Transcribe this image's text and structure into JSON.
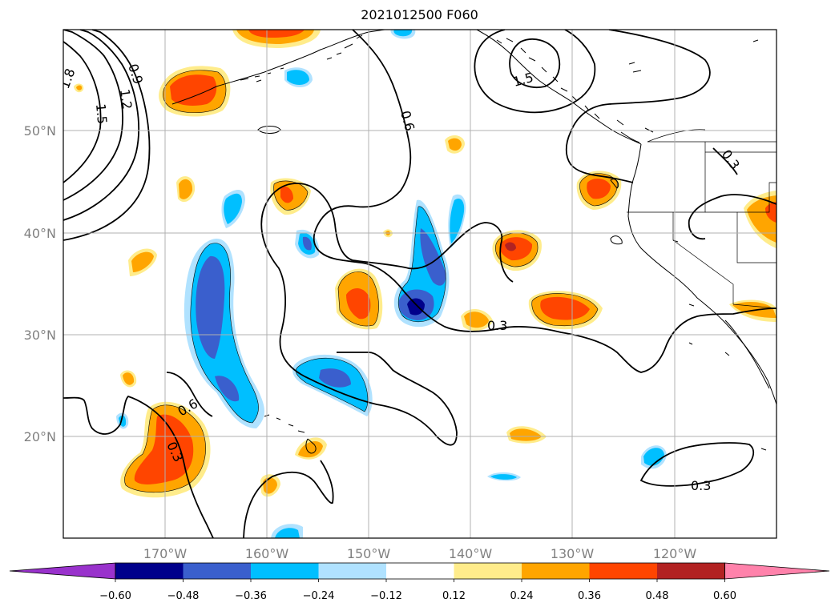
{
  "title": "2021012500 F060",
  "longitude_labels": [
    "170°W",
    "160°W",
    "150°W",
    "140°W",
    "130°W",
    "120°W"
  ],
  "latitude_labels": [
    "50°N",
    "40°N",
    "30°N",
    "20°N"
  ],
  "colorbar": {
    "ticks": [
      "−0.60",
      "−0.48",
      "−0.36",
      "−0.24",
      "−0.12",
      "0.12",
      "0.24",
      "0.36",
      "0.48",
      "0.60"
    ],
    "colors": [
      "#9932cc",
      "#00008b",
      "#3a5fcd",
      "#00bfff",
      "#b0e2ff",
      "#ffffff",
      "#ffec8b",
      "#ffa500",
      "#ff4500",
      "#b22222",
      "#ff82ab"
    ]
  },
  "contour_labels": [
    "0.9",
    "1.2",
    "1.5",
    "1.8",
    "0.6",
    "0.3",
    "0.3",
    "0.6",
    "0.3",
    "0.3",
    "1.5",
    "0.3"
  ],
  "colors": {
    "contour": "#000000",
    "grid": "#b0b0b0",
    "coast": "#000000"
  }
}
